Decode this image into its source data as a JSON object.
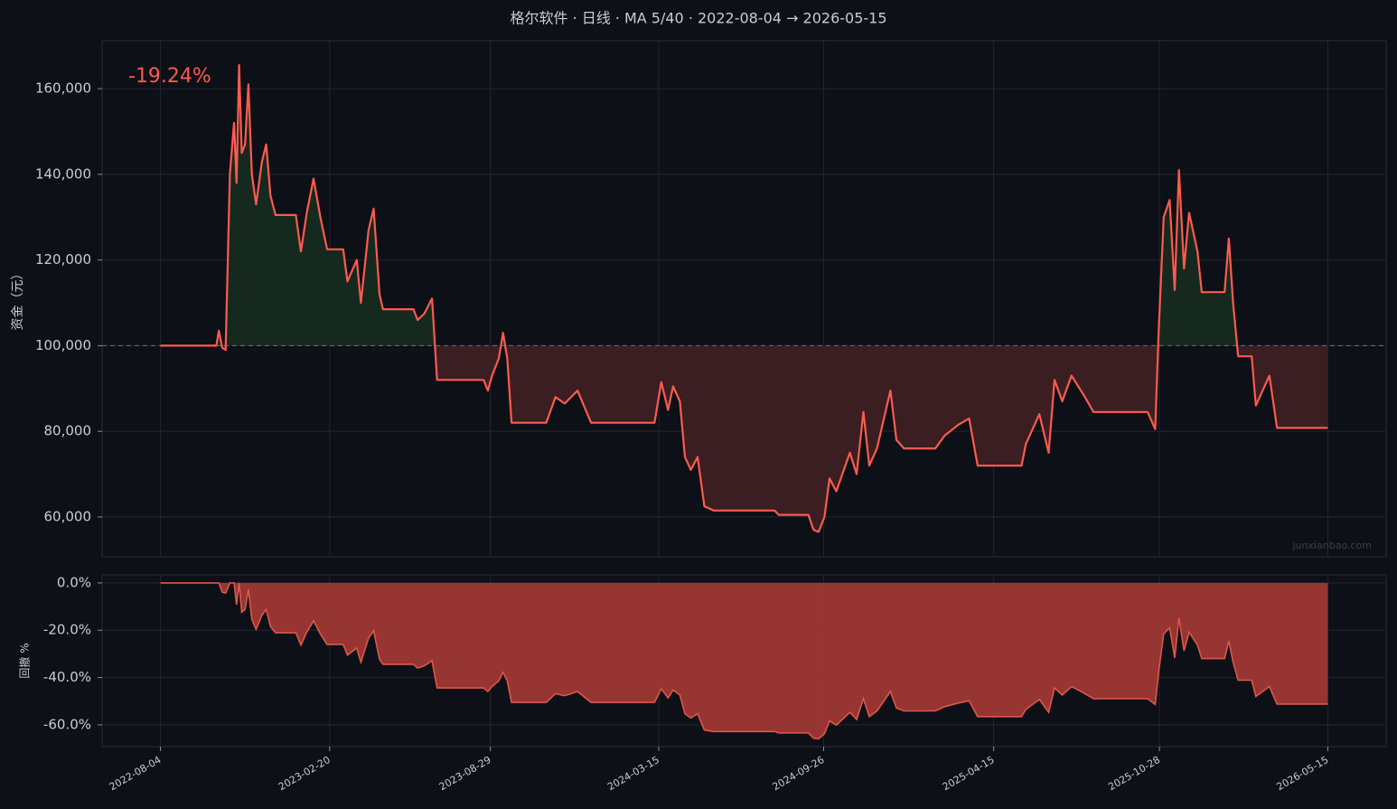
{
  "title": "格尔软件 · 日线 · MA 5/40 · 2022-08-04 → 2026-05-15",
  "chart_data": [
    {
      "type": "line",
      "ylabel": "资金（元）",
      "annotation": "-19.24%",
      "watermark": "junxianbao.com",
      "color": "#ff5a4e",
      "fill_above": "#16291f",
      "fill_below": "#3b1e22",
      "baseline": 100000,
      "grid": true,
      "xlim": [
        "2022-05-27",
        "2026-07-23"
      ],
      "ylim": [
        50700,
        171200
      ],
      "yticks": [
        {
          "value": 60000,
          "label": "60,000"
        },
        {
          "value": 80000,
          "label": "80,000"
        },
        {
          "value": 100000,
          "label": "100,000"
        },
        {
          "value": 120000,
          "label": "120,000"
        },
        {
          "value": 140000,
          "label": "140,000"
        },
        {
          "value": 160000,
          "label": "160,000"
        }
      ],
      "x": [
        "2022-08-04",
        "2022-10-09",
        "2022-10-12",
        "2022-10-16",
        "2022-10-20",
        "2022-10-25",
        "2022-10-30",
        "2022-11-02",
        "2022-11-05",
        "2022-11-08",
        "2022-11-12",
        "2022-11-16",
        "2022-11-20",
        "2022-11-25",
        "2022-12-02",
        "2022-12-07",
        "2022-12-12",
        "2022-12-18",
        "2023-01-11",
        "2023-01-17",
        "2023-01-24",
        "2023-02-01",
        "2023-02-09",
        "2023-02-17",
        "2023-03-08",
        "2023-03-13",
        "2023-03-24",
        "2023-03-29",
        "2023-04-07",
        "2023-04-13",
        "2023-04-20",
        "2023-04-24",
        "2023-05-30",
        "2023-06-04",
        "2023-06-12",
        "2023-06-21",
        "2023-06-27",
        "2023-08-21",
        "2023-08-26",
        "2023-08-31",
        "2023-09-08",
        "2023-09-13",
        "2023-09-18",
        "2023-09-23",
        "2023-11-03",
        "2023-11-14",
        "2023-11-25",
        "2023-12-10",
        "2023-12-26",
        "2024-03-10",
        "2024-03-18",
        "2024-03-26",
        "2024-04-01",
        "2024-04-09",
        "2024-04-15",
        "2024-04-22",
        "2024-04-30",
        "2024-05-08",
        "2024-05-19",
        "2024-07-30",
        "2024-08-04",
        "2024-09-08",
        "2024-09-14",
        "2024-09-20",
        "2024-09-27",
        "2024-10-03",
        "2024-10-11",
        "2024-10-27",
        "2024-11-04",
        "2024-11-12",
        "2024-11-19",
        "2024-11-28",
        "2024-12-14",
        "2024-12-21",
        "2024-12-30",
        "2025-02-05",
        "2025-02-16",
        "2025-03-04",
        "2025-03-17",
        "2025-03-27",
        "2025-05-18",
        "2025-05-23",
        "2025-06-08",
        "2025-06-19",
        "2025-06-26",
        "2025-07-05",
        "2025-07-16",
        "2025-08-01",
        "2025-08-11",
        "2025-10-14",
        "2025-10-23",
        "2025-10-27",
        "2025-11-02",
        "2025-11-09",
        "2025-11-15",
        "2025-11-20",
        "2025-11-26",
        "2025-12-02",
        "2025-12-12",
        "2025-12-17",
        "2026-01-13",
        "2026-01-18",
        "2026-01-23",
        "2026-01-29",
        "2026-02-14",
        "2026-02-19",
        "2026-02-28",
        "2026-03-07",
        "2026-03-16",
        "2026-05-15"
      ],
      "values": [
        100000,
        100000,
        103500,
        99500,
        99000,
        140000,
        152000,
        138000,
        165500,
        145000,
        147000,
        161000,
        140000,
        133000,
        143000,
        147000,
        135000,
        130500,
        130500,
        122000,
        131000,
        139000,
        130000,
        122500,
        122500,
        115000,
        120000,
        110000,
        127000,
        132000,
        112000,
        108500,
        108500,
        106000,
        107500,
        111000,
        92000,
        92000,
        89500,
        93000,
        97000,
        103000,
        97000,
        82000,
        82000,
        88000,
        86500,
        89500,
        82000,
        82000,
        91500,
        85000,
        90500,
        87000,
        74000,
        71000,
        74000,
        62500,
        61500,
        61500,
        60500,
        60500,
        57000,
        56500,
        60000,
        69000,
        66000,
        75000,
        70000,
        84500,
        72000,
        76000,
        89500,
        78000,
        76000,
        76000,
        79000,
        81500,
        83000,
        72000,
        72000,
        77000,
        84000,
        75000,
        92000,
        87000,
        93000,
        88000,
        84500,
        84500,
        80500,
        103000,
        130000,
        134000,
        113000,
        141000,
        118000,
        131000,
        122000,
        112500,
        112500,
        125000,
        110000,
        97500,
        97500,
        86000,
        90000,
        93000,
        80800,
        80800
      ]
    },
    {
      "type": "area",
      "ylabel": "回撤 %",
      "color": "#e0564a",
      "fill": "#9e3834",
      "grid": true,
      "xlim": [
        "2022-05-27",
        "2026-07-23"
      ],
      "ylim": [
        -69.2,
        3.4
      ],
      "yticks": [
        {
          "value": -60,
          "label": "-60.0%"
        },
        {
          "value": -40,
          "label": "-40.0%"
        },
        {
          "value": -20,
          "label": "-20.0%"
        },
        {
          "value": 0,
          "label": "0.0%"
        }
      ],
      "xticks": [
        "2022-08-04",
        "2023-02-20",
        "2023-08-29",
        "2024-03-15",
        "2024-09-26",
        "2025-04-15",
        "2025-10-28",
        "2026-05-15"
      ],
      "x": [
        "2022-08-04",
        "2022-10-09",
        "2022-10-12",
        "2022-10-16",
        "2022-10-20",
        "2022-10-25",
        "2022-10-30",
        "2022-11-02",
        "2022-11-05",
        "2022-11-08",
        "2022-11-12",
        "2022-11-16",
        "2022-11-20",
        "2022-11-25",
        "2022-12-02",
        "2022-12-07",
        "2022-12-12",
        "2022-12-18",
        "2023-01-11",
        "2023-01-17",
        "2023-01-24",
        "2023-02-01",
        "2023-02-09",
        "2023-02-17",
        "2023-03-08",
        "2023-03-13",
        "2023-03-24",
        "2023-03-29",
        "2023-04-07",
        "2023-04-13",
        "2023-04-20",
        "2023-04-24",
        "2023-05-30",
        "2023-06-04",
        "2023-06-12",
        "2023-06-21",
        "2023-06-27",
        "2023-08-21",
        "2023-08-26",
        "2023-08-31",
        "2023-09-08",
        "2023-09-13",
        "2023-09-18",
        "2023-09-23",
        "2023-11-03",
        "2023-11-14",
        "2023-11-25",
        "2023-12-10",
        "2023-12-26",
        "2024-03-10",
        "2024-03-18",
        "2024-03-26",
        "2024-04-01",
        "2024-04-09",
        "2024-04-15",
        "2024-04-22",
        "2024-04-30",
        "2024-05-08",
        "2024-05-19",
        "2024-07-30",
        "2024-08-04",
        "2024-09-08",
        "2024-09-14",
        "2024-09-20",
        "2024-09-27",
        "2024-10-03",
        "2024-10-11",
        "2024-10-27",
        "2024-11-04",
        "2024-11-12",
        "2024-11-19",
        "2024-11-28",
        "2024-12-14",
        "2024-12-21",
        "2024-12-30",
        "2025-02-05",
        "2025-02-16",
        "2025-03-04",
        "2025-03-17",
        "2025-03-27",
        "2025-05-18",
        "2025-05-23",
        "2025-06-08",
        "2025-06-19",
        "2025-06-26",
        "2025-07-05",
        "2025-07-16",
        "2025-08-01",
        "2025-08-11",
        "2025-10-14",
        "2025-10-23",
        "2025-10-27",
        "2025-11-02",
        "2025-11-09",
        "2025-11-15",
        "2025-11-20",
        "2025-11-26",
        "2025-12-02",
        "2025-12-12",
        "2025-12-17",
        "2026-01-13",
        "2026-01-18",
        "2026-01-23",
        "2026-01-29",
        "2026-02-14",
        "2026-02-19",
        "2026-02-28",
        "2026-03-07",
        "2026-03-16",
        "2026-05-15"
      ],
      "values": [
        0,
        0,
        0,
        -3.9,
        -4.3,
        0,
        0,
        -9.2,
        0,
        -12.4,
        -11.2,
        -2.7,
        -15.4,
        -19.6,
        -13.6,
        -11.2,
        -18.4,
        -21.1,
        -21.1,
        -26.3,
        -20.8,
        -16.0,
        -21.5,
        -26.0,
        -26.0,
        -30.5,
        -27.5,
        -33.5,
        -23.3,
        -20.2,
        -32.3,
        -34.4,
        -34.4,
        -36.0,
        -35.0,
        -32.9,
        -44.4,
        -44.4,
        -45.9,
        -43.8,
        -41.4,
        -37.8,
        -41.4,
        -50.5,
        -50.5,
        -46.8,
        -47.7,
        -45.9,
        -50.5,
        -50.5,
        -44.7,
        -48.6,
        -45.3,
        -47.4,
        -55.3,
        -57.1,
        -55.3,
        -62.2,
        -62.8,
        -62.8,
        -63.4,
        -63.4,
        -65.6,
        -65.9,
        -63.7,
        -58.3,
        -60.1,
        -54.7,
        -57.7,
        -48.9,
        -56.5,
        -54.1,
        -45.9,
        -52.9,
        -54.1,
        -54.1,
        -52.3,
        -50.8,
        -49.8,
        -56.5,
        -56.5,
        -53.5,
        -49.2,
        -54.7,
        -44.4,
        -47.4,
        -43.8,
        -46.8,
        -48.9,
        -48.9,
        -51.4,
        -37.8,
        -21.5,
        -19.0,
        -31.7,
        -14.8,
        -28.7,
        -20.8,
        -26.3,
        -32.0,
        -32.0,
        -24.5,
        -33.5,
        -41.1,
        -41.1,
        -48.0,
        -45.6,
        -43.8,
        -51.2,
        -51.2
      ]
    }
  ]
}
